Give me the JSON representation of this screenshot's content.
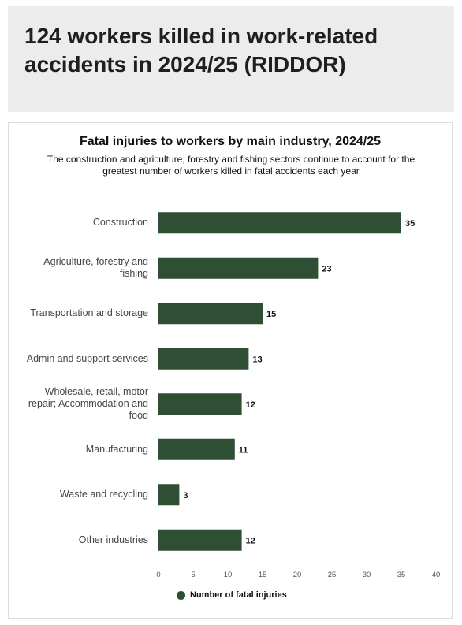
{
  "header": {
    "title": "124 workers killed in work-related accidents in 2024/25 (RIDDOR)"
  },
  "chart_data": {
    "type": "bar",
    "orientation": "horizontal",
    "title": "Fatal injuries to workers by main industry, 2024/25",
    "subtitle": "The construction and agriculture, forestry and fishing sectors continue to account for the greatest number of workers killed in fatal accidents each year",
    "categories": [
      "Construction",
      "Agriculture, forestry and fishing",
      "Transportation and storage",
      "Admin and support services",
      "Wholesale, retail, motor repair; Accommodation and food",
      "Manufacturing",
      "Waste and recycling",
      "Other industries"
    ],
    "series": [
      {
        "name": "Number of fatal injuries",
        "values": [
          35,
          23,
          15,
          13,
          12,
          11,
          3,
          12
        ]
      }
    ],
    "xlim": [
      0,
      40
    ],
    "xticks": [
      0,
      5,
      10,
      15,
      20,
      25,
      30,
      35,
      40
    ],
    "grid": false,
    "legend_position": "bottom",
    "bar_color": "#2f4f35"
  }
}
